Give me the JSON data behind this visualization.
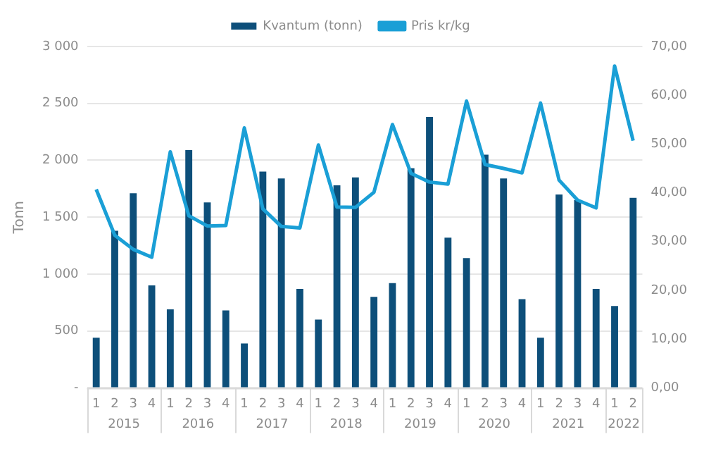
{
  "chart_data": {
    "type": "bar",
    "ylabel": "Tonn",
    "categories": [
      "1",
      "2",
      "3",
      "4",
      "1",
      "2",
      "3",
      "4",
      "1",
      "2",
      "3",
      "4",
      "1",
      "2",
      "3",
      "4",
      "1",
      "2",
      "3",
      "4",
      "1",
      "2",
      "3",
      "4",
      "1",
      "2",
      "3",
      "4",
      "1",
      "2"
    ],
    "annotations": [
      "2015",
      "2016",
      "2017",
      "2018",
      "2019",
      "2020",
      "2021",
      "2022"
    ],
    "series": [
      {
        "name": "Kvantum (tonn)",
        "color": "#0d4f7a",
        "values": [
          440,
          1380,
          1710,
          900,
          690,
          2090,
          1630,
          680,
          390,
          1900,
          1840,
          870,
          600,
          1780,
          1850,
          800,
          920,
          1930,
          2380,
          1320,
          1140,
          2050,
          1840,
          780,
          440,
          1700,
          1650,
          870,
          720,
          1670
        ]
      },
      {
        "name": "Pris kr/kg",
        "type": "line",
        "axis": "y2",
        "color": "#1a9fd6",
        "values": [
          40.7,
          31.3,
          28.4,
          26.8,
          48.4,
          35.3,
          33.2,
          33.3,
          53.3,
          36.7,
          33.1,
          32.8,
          49.8,
          37.1,
          37.0,
          40.1,
          54.0,
          44.0,
          42.2,
          41.8,
          58.8,
          45.8,
          45.0,
          44.1,
          58.4,
          42.6,
          38.5,
          36.9,
          66.0,
          50.7
        ]
      }
    ],
    "ylim": [
      0,
      3000
    ],
    "yticks": [
      {
        "value": 0,
        "label": "-"
      },
      500,
      {
        "value": 1000,
        "label": "1 000"
      },
      {
        "value": 1500,
        "label": "1 500"
      },
      {
        "value": 2000,
        "label": "2 000"
      },
      {
        "value": 2500,
        "label": "2 500"
      },
      {
        "value": 3000,
        "label": "3 000"
      }
    ],
    "y2lim": [
      0,
      70
    ],
    "y2ticks": [
      {
        "value": 0,
        "label": "0,00"
      },
      {
        "value": 10,
        "label": "10,00"
      },
      {
        "value": 20,
        "label": "20,00"
      },
      {
        "value": 30,
        "label": "30,00"
      },
      {
        "value": 40,
        "label": "40,00"
      },
      {
        "value": 50,
        "label": "50,00"
      },
      {
        "value": 60,
        "label": "60,00"
      },
      {
        "value": 70,
        "label": "70,00"
      }
    ],
    "grid": "y",
    "legend": "top",
    "marker": "none",
    "line_style": "solid"
  }
}
